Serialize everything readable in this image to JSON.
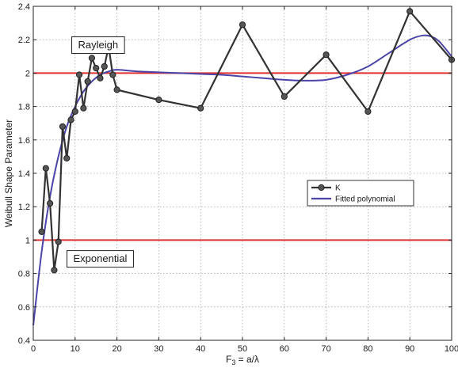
{
  "chart_data": {
    "type": "line",
    "title": "",
    "xlabel_main": "F",
    "xlabel_sub": "3",
    "xlabel_rest": " = a/λ",
    "ylabel": "Weibull Shape Parameter",
    "xlim": [
      0,
      100
    ],
    "ylim": [
      0.4,
      2.4
    ],
    "xticks": [
      0,
      10,
      20,
      30,
      40,
      50,
      60,
      70,
      80,
      90,
      100
    ],
    "yticks": [
      0.4,
      0.6,
      0.8,
      1,
      1.2,
      1.4,
      1.6,
      1.8,
      2,
      2.2,
      2.4
    ],
    "ytick_labels": [
      "0.4",
      "0.6",
      "0.8",
      "1",
      "1.2",
      "1.4",
      "1.6",
      "1.8",
      "2",
      "2.2",
      "2.4"
    ],
    "xtick_labels": [
      "0",
      "10",
      "20",
      "30",
      "40",
      "50",
      "60",
      "70",
      "80",
      "90",
      "100"
    ],
    "grid": true,
    "legend_position": "center-right",
    "series": [
      {
        "name": "K",
        "style": "line-with-circle-markers",
        "color": "#333333",
        "x": [
          2,
          3,
          4,
          5,
          6,
          7,
          8,
          9,
          10,
          11,
          12,
          13,
          14,
          15,
          16,
          17,
          18,
          19,
          20,
          30,
          40,
          50,
          60,
          70,
          80,
          90,
          100
        ],
        "y": [
          1.05,
          1.43,
          1.22,
          0.82,
          0.99,
          1.68,
          1.49,
          1.72,
          1.77,
          1.99,
          1.79,
          1.95,
          2.09,
          2.03,
          1.97,
          2.04,
          2.16,
          1.99,
          1.9,
          1.84,
          1.79,
          2.29,
          1.86,
          2.11,
          1.77,
          2.37,
          2.08
        ]
      },
      {
        "name": "Fitted polynomial",
        "style": "smooth-line",
        "color": "#4a44a8",
        "x": [
          0,
          2,
          4,
          6,
          8,
          10,
          12,
          14,
          16,
          18,
          20,
          25,
          30,
          35,
          40,
          45,
          50,
          55,
          60,
          65,
          70,
          75,
          80,
          85,
          90,
          93,
          95,
          97,
          100
        ],
        "y": [
          0.49,
          0.93,
          1.26,
          1.5,
          1.68,
          1.8,
          1.89,
          1.95,
          1.99,
          2.01,
          2.02,
          2.01,
          2.005,
          2.0,
          1.995,
          1.99,
          1.98,
          1.97,
          1.96,
          1.955,
          1.96,
          1.99,
          2.04,
          2.12,
          2.2,
          2.225,
          2.22,
          2.19,
          2.1
        ]
      }
    ],
    "reference_lines": [
      {
        "y": 2,
        "color": "#e03030"
      },
      {
        "y": 1,
        "color": "#e03030"
      }
    ],
    "annotations": [
      {
        "text": "Rayleigh",
        "x": 15.5,
        "y": 2.17
      },
      {
        "text": "Exponential",
        "x": 16.0,
        "y": 0.89
      }
    ]
  }
}
